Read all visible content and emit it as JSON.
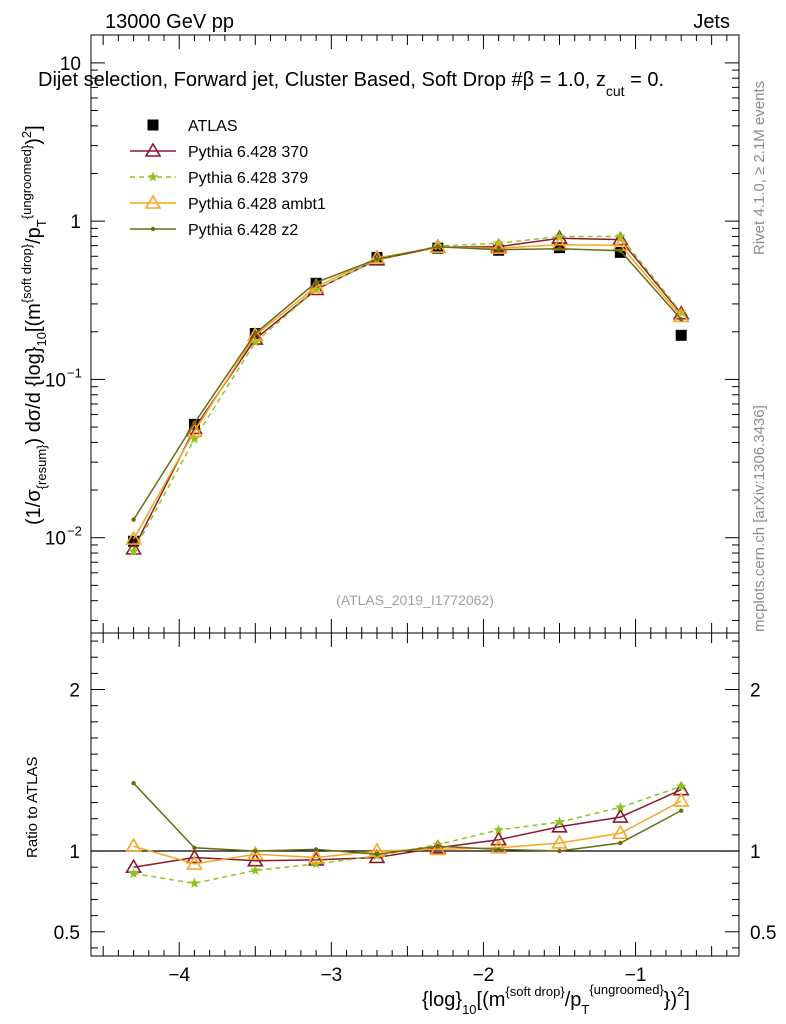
{
  "header": {
    "energy_label": "13000 GeV pp",
    "process_label": "Jets",
    "plot_title": "Dijet selection, Forward jet, Cluster Based, Soft Drop #β = 1.0, z",
    "title_sub": "cut",
    "title_end": " = 0.",
    "reference": "(ATLAS_2019_I1772062)"
  },
  "side_labels": {
    "rivet": "Rivet 4.1.0, ≥ 2.1M events",
    "mcplots": "mcplots.cern.ch [arXiv:1306.3436]"
  },
  "axes": {
    "ylabel_main": "(1/σ_{resum}) dσ/d {log}_{10}[(m^{soft drop}/p_T^{ungroomed})^2]",
    "ylabel_ratio": "Ratio to ATLAS",
    "xlabel": "{log}_{10}[(m^{soft drop}/p_T^{ungroomed})^2]",
    "main_y_ticks": [
      "10",
      "1",
      "10",
      "10"
    ],
    "main_y_exponents": [
      "",
      "",
      "−1",
      "−2"
    ],
    "ratio_y_ticks": [
      "2",
      "1",
      "0.5"
    ],
    "x_ticks": [
      "−4",
      "−3",
      "−2",
      "−1"
    ]
  },
  "legend": [
    {
      "label": "ATLAS",
      "color": "#000000",
      "marker": "square",
      "dashed": false
    },
    {
      "label": "Pythia 6.428 370",
      "color": "#8b1a2e",
      "marker": "triangle-open",
      "dashed": false
    },
    {
      "label": "Pythia 6.428 379",
      "color": "#8fc31f",
      "marker": "star",
      "dashed": true
    },
    {
      "label": "Pythia 6.428 ambt1",
      "color": "#f5a623",
      "marker": "triangle-open",
      "dashed": false
    },
    {
      "label": "Pythia 6.428 z2",
      "color": "#6b6b10",
      "marker": "dot",
      "dashed": false
    }
  ],
  "chart_data": [
    {
      "type": "line",
      "title": "Dijet selection, Forward jet, Cluster Based, Soft Drop #β = 1.0, z_cut = 0.",
      "xlabel": "{log}_{10}[(m^{soft drop}/p_T^{ungroomed})^2]",
      "ylabel": "(1/σ_{resum}) dσ/d {log}_{10}[(m^{soft drop}/p_T^{ungroomed})^2]",
      "yscale": "log",
      "xlim": [
        -4.58,
        -0.32
      ],
      "ylim": [
        0.0025,
        15
      ],
      "x": [
        -4.3,
        -3.9,
        -3.5,
        -3.1,
        -2.7,
        -2.3,
        -1.9,
        -1.5,
        -1.1,
        -0.7
      ],
      "series": [
        {
          "name": "ATLAS",
          "values": [
            0.0095,
            0.052,
            0.195,
            0.405,
            0.59,
            0.675,
            0.655,
            0.68,
            0.635,
            0.19
          ]
        },
        {
          "name": "Pythia 6.428 370",
          "values": [
            0.0085,
            0.049,
            0.18,
            0.37,
            0.57,
            0.685,
            0.69,
            0.78,
            0.765,
            0.26
          ]
        },
        {
          "name": "Pythia 6.428 379",
          "values": [
            0.0082,
            0.042,
            0.172,
            0.37,
            0.57,
            0.695,
            0.725,
            0.8,
            0.8,
            0.265
          ]
        },
        {
          "name": "Pythia 6.428 ambt1",
          "values": [
            0.0098,
            0.047,
            0.19,
            0.385,
            0.585,
            0.685,
            0.675,
            0.71,
            0.705,
            0.25
          ]
        },
        {
          "name": "Pythia 6.428 z2",
          "values": [
            0.013,
            0.053,
            0.195,
            0.41,
            0.575,
            0.69,
            0.66,
            0.67,
            0.65,
            0.24
          ]
        }
      ]
    },
    {
      "type": "line",
      "title": "",
      "xlabel": "{log}_{10}[(m^{soft drop}/p_T^{ungroomed})^2]",
      "ylabel": "Ratio to ATLAS",
      "xlim": [
        -4.58,
        -0.32
      ],
      "ylim": [
        0.35,
        2.35
      ],
      "x": [
        -4.3,
        -3.9,
        -3.5,
        -3.1,
        -2.7,
        -2.3,
        -1.9,
        -1.5,
        -1.1,
        -0.7
      ],
      "series": [
        {
          "name": "Pythia 6.428 370",
          "values": [
            0.9,
            0.96,
            0.94,
            0.945,
            0.96,
            1.02,
            1.07,
            1.15,
            1.21,
            1.38
          ]
        },
        {
          "name": "Pythia 6.428 379",
          "values": [
            0.86,
            0.8,
            0.88,
            0.92,
            0.97,
            1.04,
            1.13,
            1.18,
            1.27,
            1.4
          ]
        },
        {
          "name": "Pythia 6.428 ambt1",
          "values": [
            1.03,
            0.92,
            0.98,
            0.96,
            1.0,
            1.01,
            1.02,
            1.05,
            1.11,
            1.31
          ]
        },
        {
          "name": "Pythia 6.428 z2",
          "values": [
            1.42,
            1.02,
            1.0,
            1.01,
            0.98,
            1.03,
            1.01,
            1.0,
            1.05,
            1.25
          ]
        }
      ]
    }
  ]
}
